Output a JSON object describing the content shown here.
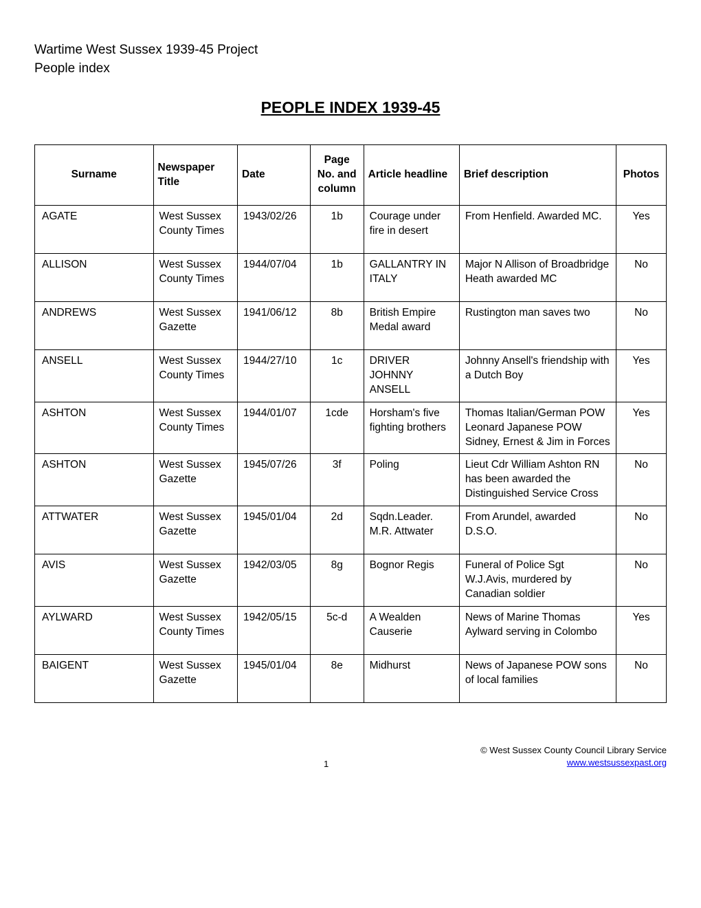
{
  "header": {
    "line1": "Wartime West Sussex 1939-45 Project",
    "line2": "People index"
  },
  "title": "PEOPLE INDEX 1939-45",
  "table": {
    "columns": [
      "Surname",
      "Newspaper Title",
      "Date",
      "Page No. and column",
      "Article headline",
      "Brief description",
      "Photos"
    ],
    "rows": [
      {
        "surname": "AGATE",
        "newspaper": "West Sussex County Times",
        "date": "1943/02/26",
        "page": "1b",
        "headline": "Courage under fire in desert",
        "description": "From Henfield. Awarded MC.",
        "photos": "Yes"
      },
      {
        "surname": "ALLISON",
        "newspaper": "West Sussex County Times",
        "date": "1944/07/04",
        "page": "1b",
        "headline": "GALLANTRY IN ITALY",
        "description": "Major N Allison of Broadbridge Heath awarded MC",
        "photos": "No"
      },
      {
        "surname": "ANDREWS",
        "newspaper": "West Sussex Gazette",
        "date": "1941/06/12",
        "page": "8b",
        "headline": "British Empire Medal award",
        "description": "Rustington man saves two",
        "photos": "No"
      },
      {
        "surname": "ANSELL",
        "newspaper": "West Sussex County Times",
        "date": "1944/27/10",
        "page": "1c",
        "headline": "DRIVER JOHNNY ANSELL",
        "description": "Johnny Ansell's friendship with a Dutch Boy",
        "photos": "Yes"
      },
      {
        "surname": "ASHTON",
        "newspaper": "West Sussex County Times",
        "date": "1944/01/07",
        "page": "1cde",
        "headline": "Horsham's five fighting brothers",
        "description": "Thomas Italian/German POW Leonard Japanese POW Sidney, Ernest & Jim in Forces",
        "photos": "Yes"
      },
      {
        "surname": "ASHTON",
        "newspaper": "West Sussex Gazette",
        "date": "1945/07/26",
        "page": "3f",
        "headline": "Poling",
        "description": "Lieut Cdr William Ashton RN has been awarded the Distinguished Service Cross",
        "photos": "No"
      },
      {
        "surname": "ATTWATER",
        "newspaper": "West Sussex Gazette",
        "date": "1945/01/04",
        "page": "2d",
        "headline": "Sqdn.Leader. M.R. Attwater",
        "description": "From Arundel, awarded D.S.O.",
        "photos": "No"
      },
      {
        "surname": "AVIS",
        "newspaper": "West Sussex Gazette",
        "date": "1942/03/05",
        "page": "8g",
        "headline": "Bognor Regis",
        "description": "Funeral of Police Sgt W.J.Avis, murdered by Canadian soldier",
        "photos": "No"
      },
      {
        "surname": "AYLWARD",
        "newspaper": "West Sussex County Times",
        "date": "1942/05/15",
        "page": "5c-d",
        "headline": "A Wealden Causerie",
        "description": "News of Marine Thomas Aylward serving in Colombo",
        "photos": "Yes"
      },
      {
        "surname": "BAIGENT",
        "newspaper": "West Sussex Gazette",
        "date": "1945/01/04",
        "page": "8e",
        "headline": "Midhurst",
        "description": "News of Japanese POW sons of local families",
        "photos": "No"
      }
    ]
  },
  "footer": {
    "page_number": "1",
    "copyright": "© West Sussex County Council Library Service",
    "link": "www.westsussexpast.org"
  }
}
